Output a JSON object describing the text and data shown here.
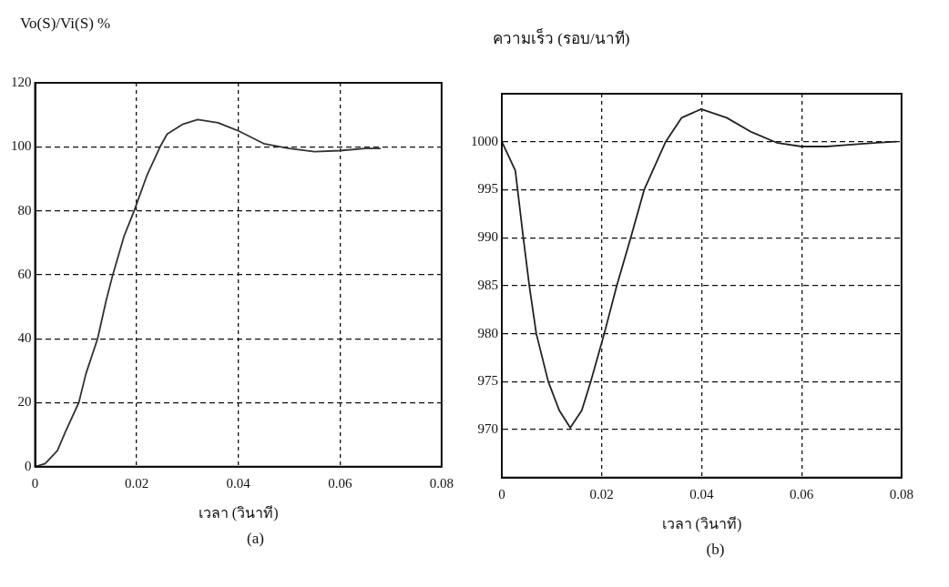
{
  "chart_data": [
    {
      "type": "line",
      "ylabel": "Vo(S)/Vi(S) %",
      "xlabel": "เวลา (วินาที)",
      "annotations": [
        "(a)"
      ],
      "series": [
        {
          "color": "#333333",
          "x": [
            0,
            0.002,
            0.0044,
            0.006,
            0.0086,
            0.01,
            0.0123,
            0.014,
            0.0153,
            0.0175,
            0.0195,
            0.022,
            0.0246,
            0.026,
            0.029,
            0.032,
            0.036,
            0.04,
            0.045,
            0.05,
            0.055,
            0.06,
            0.065,
            0.068
          ],
          "values": [
            0,
            1,
            5,
            11,
            20,
            29,
            40,
            52,
            60,
            72,
            80,
            91,
            100,
            104,
            107,
            108.5,
            107.5,
            105,
            101,
            99.5,
            98.5,
            98.8,
            99.5,
            99.5
          ]
        }
      ],
      "xlim": [
        0,
        0.08
      ],
      "xticks": [
        0,
        0.02,
        0.04,
        0.06,
        0.08
      ],
      "ylim": [
        0,
        120
      ],
      "yticks": [
        0,
        20,
        40,
        60,
        80,
        100,
        120
      ],
      "grid": true,
      "line_style": "solid",
      "marker": "none"
    },
    {
      "type": "line",
      "ylabel": "ความเร็ว (รอบ/นาที)",
      "xlabel": "เวลา (วินาที)",
      "annotations": [
        "(b)"
      ],
      "series": [
        {
          "color": "#222222",
          "x": [
            0,
            0.0027,
            0.0043,
            0.0055,
            0.0069,
            0.0093,
            0.0115,
            0.0137,
            0.016,
            0.0178,
            0.0205,
            0.023,
            0.0258,
            0.0285,
            0.0328,
            0.036,
            0.0399,
            0.045,
            0.05,
            0.055,
            0.06,
            0.065,
            0.07,
            0.075,
            0.079
          ],
          "values": [
            1000,
            997,
            990,
            985,
            980,
            975,
            972,
            970.2,
            972,
            975,
            980,
            985,
            990,
            995,
            1000,
            1002.5,
            1003.4,
            1002.5,
            1001,
            999.9,
            999.5,
            999.5,
            999.7,
            999.9,
            1000
          ]
        }
      ],
      "xlim": [
        0,
        0.08
      ],
      "xticks": [
        0,
        0.02,
        0.04,
        0.06,
        0.08
      ],
      "ylim": [
        965,
        1005
      ],
      "yticks": [
        970,
        975,
        980,
        985,
        990,
        995,
        1000
      ],
      "grid": true,
      "line_style": "solid",
      "marker": "none"
    }
  ]
}
